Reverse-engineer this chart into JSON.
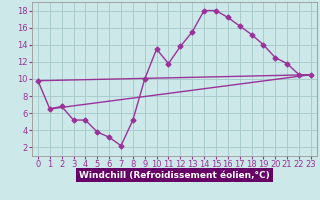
{
  "xlabel": "Windchill (Refroidissement éolien,°C)",
  "bg_color": "#cce8e8",
  "grid_color": "#aacccc",
  "line_color": "#993399",
  "xlabel_bg": "#660066",
  "xlabel_fg": "#ffffff",
  "xlim": [
    -0.5,
    23.5
  ],
  "ylim": [
    1,
    19
  ],
  "xticks": [
    0,
    1,
    2,
    3,
    4,
    5,
    6,
    7,
    8,
    9,
    10,
    11,
    12,
    13,
    14,
    15,
    16,
    17,
    18,
    19,
    20,
    21,
    22,
    23
  ],
  "yticks": [
    2,
    4,
    6,
    8,
    10,
    12,
    14,
    16,
    18
  ],
  "curve1_x": [
    0,
    1,
    2,
    3,
    4,
    5,
    6,
    7,
    8,
    9,
    10,
    11,
    12,
    13,
    14,
    15,
    16,
    17,
    18,
    19,
    20,
    21,
    22,
    23
  ],
  "curve1_y": [
    9.8,
    6.5,
    6.8,
    5.2,
    5.2,
    3.8,
    3.2,
    2.2,
    5.2,
    10.0,
    13.5,
    11.8,
    13.8,
    15.5,
    18.0,
    18.0,
    17.2,
    16.2,
    15.2,
    14.0,
    12.5,
    11.8,
    10.5,
    10.5
  ],
  "curve2_x": [
    0,
    23
  ],
  "curve2_y": [
    9.8,
    10.5
  ],
  "curve3_x": [
    1,
    23
  ],
  "curve3_y": [
    6.5,
    10.5
  ],
  "xlabel_fontsize": 6.5,
  "tick_fontsize": 6
}
